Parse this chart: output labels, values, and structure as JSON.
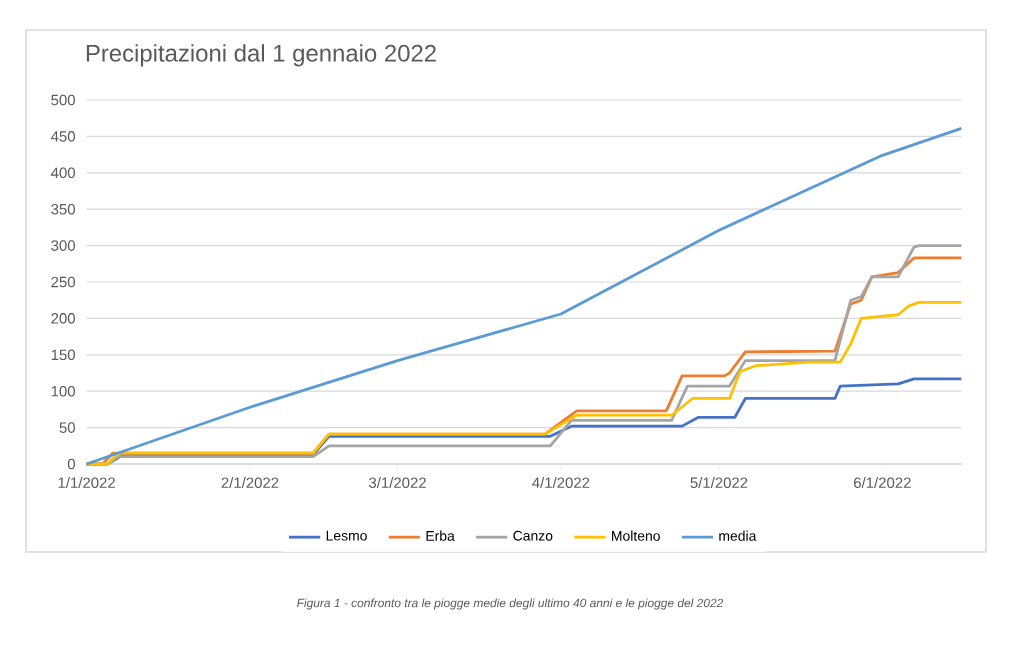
{
  "chart_data": {
    "type": "line",
    "title": "Precipitazioni dal 1 gennaio 2022",
    "annotations": [
      "Figura 1 -  confronto tra le piogge medie degli ultimo 40 anni e le piogge del 2022"
    ],
    "xlim": [
      "2022-01-01",
      "2022-06-16"
    ],
    "xticks": [
      {
        "value": "2022-01-01",
        "label": "1/1/2022"
      },
      {
        "value": "2022-02-01",
        "label": "2/1/2022"
      },
      {
        "value": "2022-03-01",
        "label": "3/1/2022"
      },
      {
        "value": "2022-04-01",
        "label": "4/1/2022"
      },
      {
        "value": "2022-05-01",
        "label": "5/1/2022"
      },
      {
        "value": "2022-06-01",
        "label": "6/1/2022"
      }
    ],
    "ylim": [
      0,
      500
    ],
    "yticks": [
      0,
      50,
      100,
      150,
      200,
      250,
      300,
      350,
      400,
      450,
      500
    ],
    "grid": "y",
    "legend": "bottom",
    "marker": "none",
    "line_style": "solid",
    "series": [
      {
        "name": "Lesmo",
        "color": "#4472c4",
        "x": [
          "2022-01-01",
          "2022-01-05",
          "2022-01-08",
          "2022-02-13",
          "2022-02-16",
          "2022-03-30",
          "2022-04-03",
          "2022-04-24",
          "2022-04-27",
          "2022-05-04",
          "2022-05-06",
          "2022-05-23",
          "2022-05-24",
          "2022-06-04",
          "2022-06-07",
          "2022-06-16"
        ],
        "values": [
          0,
          0,
          13,
          13,
          38,
          38,
          52,
          52,
          64,
          64,
          90,
          90,
          107,
          110,
          117,
          117
        ]
      },
      {
        "name": "Erba",
        "color": "#ed7d31",
        "x": [
          "2022-01-01",
          "2022-01-04",
          "2022-01-06",
          "2022-02-13",
          "2022-02-16",
          "2022-03-29",
          "2022-04-04",
          "2022-04-21",
          "2022-04-24",
          "2022-05-02",
          "2022-05-03",
          "2022-05-06",
          "2022-05-23",
          "2022-05-26",
          "2022-05-28",
          "2022-05-30",
          "2022-06-04",
          "2022-06-07",
          "2022-06-16"
        ],
        "values": [
          0,
          0,
          15,
          15,
          41,
          41,
          73,
          73,
          121,
          121,
          125,
          154,
          155,
          220,
          225,
          257,
          263,
          283,
          283
        ]
      },
      {
        "name": "Canzo",
        "color": "#a5a5a5",
        "x": [
          "2022-01-01",
          "2022-01-05",
          "2022-01-07",
          "2022-02-13",
          "2022-02-16",
          "2022-03-30",
          "2022-04-03",
          "2022-04-22",
          "2022-04-25",
          "2022-05-03",
          "2022-05-06",
          "2022-05-23",
          "2022-05-26",
          "2022-05-28",
          "2022-05-30",
          "2022-06-04",
          "2022-06-07",
          "2022-06-08",
          "2022-06-16"
        ],
        "values": [
          0,
          0,
          10,
          10,
          25,
          25,
          60,
          60,
          107,
          107,
          142,
          142,
          225,
          230,
          257,
          257,
          298,
          300,
          300
        ]
      },
      {
        "name": "Molteno",
        "color": "#ffc000",
        "x": [
          "2022-01-01",
          "2022-01-05",
          "2022-01-07",
          "2022-02-13",
          "2022-02-16",
          "2022-03-29",
          "2022-04-04",
          "2022-04-22",
          "2022-04-26",
          "2022-05-03",
          "2022-05-05",
          "2022-05-08",
          "2022-05-18",
          "2022-05-24",
          "2022-05-26",
          "2022-05-28",
          "2022-06-04",
          "2022-06-06",
          "2022-06-08",
          "2022-06-16"
        ],
        "values": [
          0,
          0,
          15,
          15,
          41,
          41,
          67,
          67,
          90,
          90,
          127,
          135,
          140,
          140,
          165,
          200,
          205,
          217,
          222,
          222
        ]
      },
      {
        "name": "media",
        "color": "#5b9bd5",
        "x": [
          "2022-01-01",
          "2022-02-01",
          "2022-03-01",
          "2022-04-01",
          "2022-05-01",
          "2022-06-01",
          "2022-06-16"
        ],
        "values": [
          0,
          78,
          142,
          206,
          321,
          424,
          461
        ]
      }
    ]
  }
}
